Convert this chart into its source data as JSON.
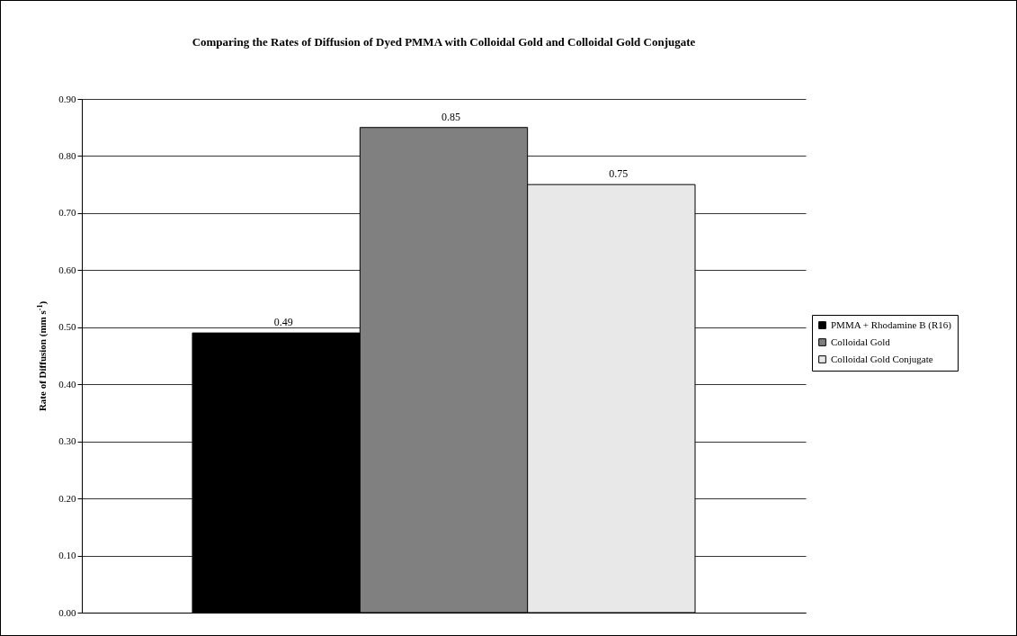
{
  "chart_data": {
    "type": "bar",
    "title": "Comparing the Rates of Diffusion of Dyed PMMA with Colloidal Gold and Colloidal Gold Conjugate",
    "ylabel": "Rate of Diffusion (mm s$^{-1}$)",
    "categories": [
      null
    ],
    "series": [
      {
        "name": "PMMA + Rhodamine B (R16)",
        "color": "#000000",
        "values": [
          0.49
        ]
      },
      {
        "name": "Colloidal Gold",
        "color": "#808080",
        "values": [
          0.85
        ]
      },
      {
        "name": "Colloidal Gold Conjugate",
        "color": "#e8e8e8",
        "values": [
          0.75
        ]
      }
    ],
    "ylim": [
      0,
      0.9
    ],
    "yticks": [
      {
        "value": 0,
        "label": "0.00"
      },
      {
        "value": 0.1,
        "label": "0.10"
      },
      {
        "value": 0.2,
        "label": "0.20"
      },
      {
        "value": 0.3,
        "label": "0.30"
      },
      {
        "value": 0.4,
        "label": "0.40"
      },
      {
        "value": 0.5,
        "label": "0.50"
      },
      {
        "value": 0.6,
        "label": "0.60"
      },
      {
        "value": 0.7,
        "label": "0.70"
      },
      {
        "value": 0.8,
        "label": "0.80"
      },
      {
        "value": 0.9,
        "label": "0.90"
      }
    ],
    "grid": "y",
    "legend": "right",
    "data_labels": true
  }
}
